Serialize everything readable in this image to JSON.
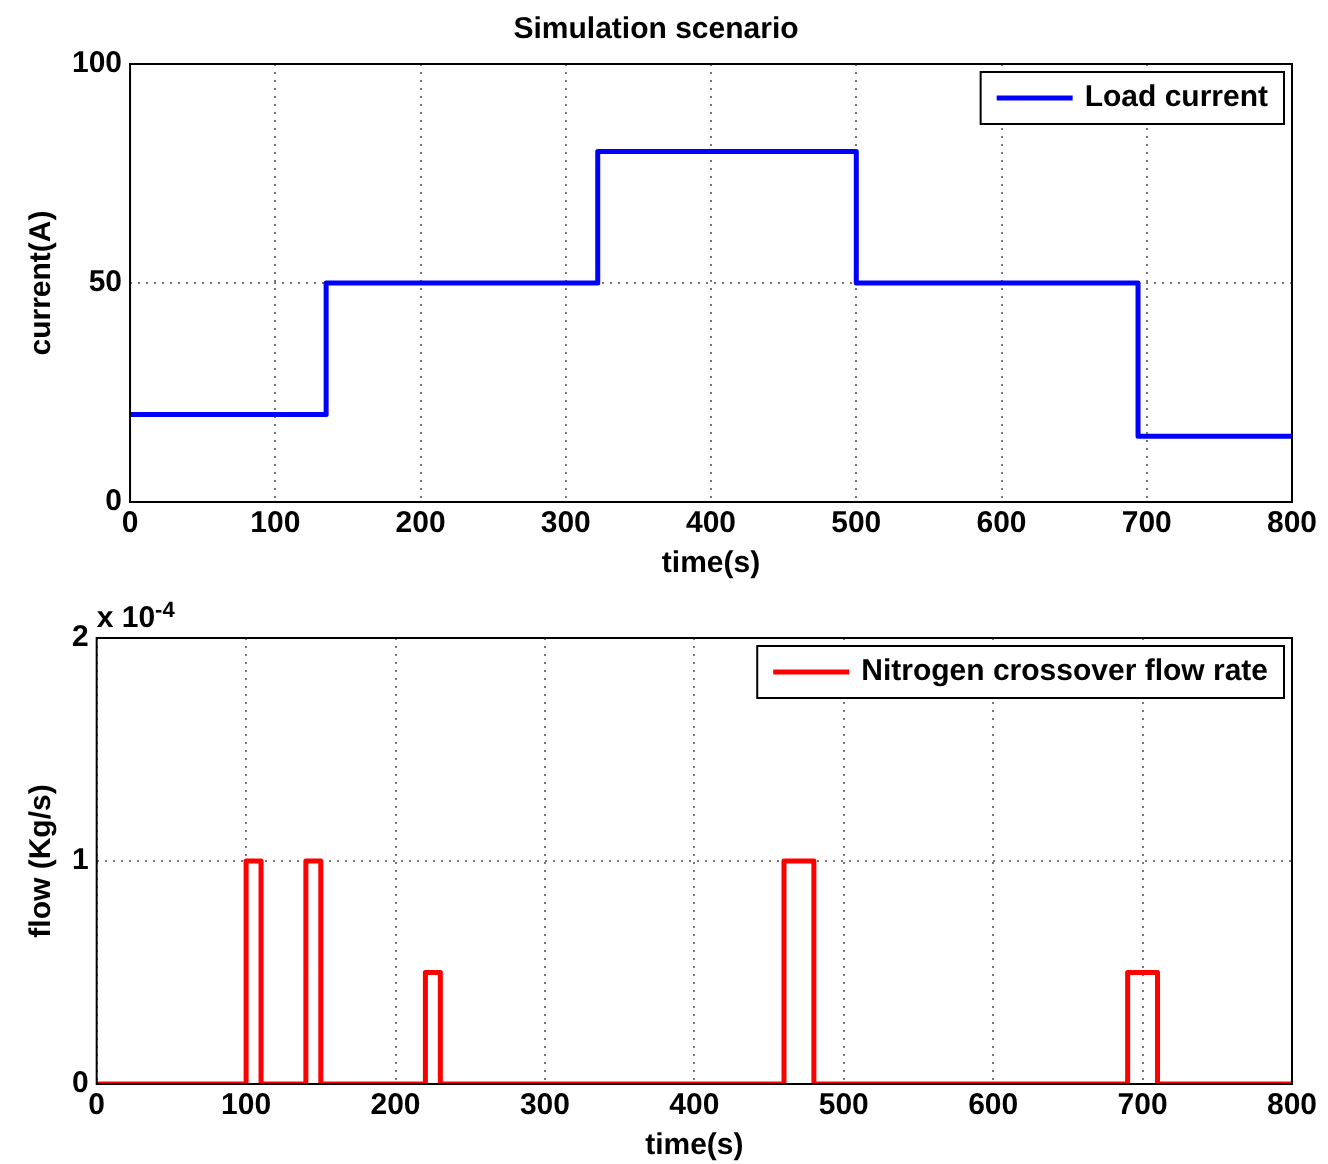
{
  "chart_data": [
    {
      "type": "step",
      "title": "Simulation scenario",
      "xlabel": "time(s)",
      "ylabel": "current(A)",
      "legend": "top right",
      "grid": true,
      "series": [
        {
          "name": "Load current",
          "color": "#0000ff",
          "x": [
            0,
            135,
            322,
            500,
            694,
            800
          ],
          "values": [
            20,
            50,
            80,
            50,
            15,
            15
          ]
        }
      ],
      "xlim": [
        0,
        800
      ],
      "xticks": [
        0,
        100,
        200,
        300,
        400,
        500,
        600,
        700,
        800
      ],
      "ylim": [
        0,
        100
      ],
      "yticks": [
        0,
        50,
        100
      ]
    },
    {
      "type": "step",
      "xlabel": "time(s)",
      "ylabel": "flow (Kg/s)",
      "legend": "top right",
      "grid": true,
      "annotations": [
        "x 10$^{-4}$"
      ],
      "series": [
        {
          "name": "Nitrogen crossover flow rate",
          "color": "#ff0000",
          "x": [
            0,
            100,
            110,
            140,
            150,
            220,
            230,
            460,
            480,
            690,
            710,
            800
          ],
          "values": [
            0,
            1,
            0,
            1,
            0,
            0.5,
            0,
            1,
            0,
            0.5,
            0,
            0
          ]
        }
      ],
      "xlim": [
        0,
        800
      ],
      "xticks": [
        0,
        100,
        200,
        300,
        400,
        500,
        600,
        700,
        800
      ],
      "ylim": [
        0,
        2
      ],
      "yticks": [
        0,
        1,
        2
      ]
    }
  ]
}
